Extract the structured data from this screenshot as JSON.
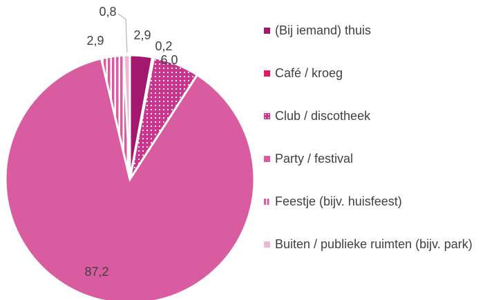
{
  "chart_data": {
    "type": "pie",
    "categories": [
      "(Bij iemand) thuis",
      "Café / kroeg",
      "Club / discotheek",
      "Party / festival",
      "Feestje (bijv. huisfeest)",
      "Buiten / publieke ruimten (bijv. park)"
    ],
    "values": [
      2.9,
      0.2,
      6.0,
      87.2,
      2.9,
      0.8
    ],
    "value_labels": [
      "2,9",
      "0,2",
      "6,0",
      "87,2",
      "2,9",
      "0,8"
    ],
    "colors": [
      "#a3186f",
      "#e6195a",
      "#c8358c",
      "#d95ba0",
      "#d95ba0",
      "#f0b6d3"
    ],
    "patterns": [
      "solid",
      "solid",
      "dots",
      "solid",
      "stripes",
      "solid"
    ],
    "legend": "right"
  }
}
